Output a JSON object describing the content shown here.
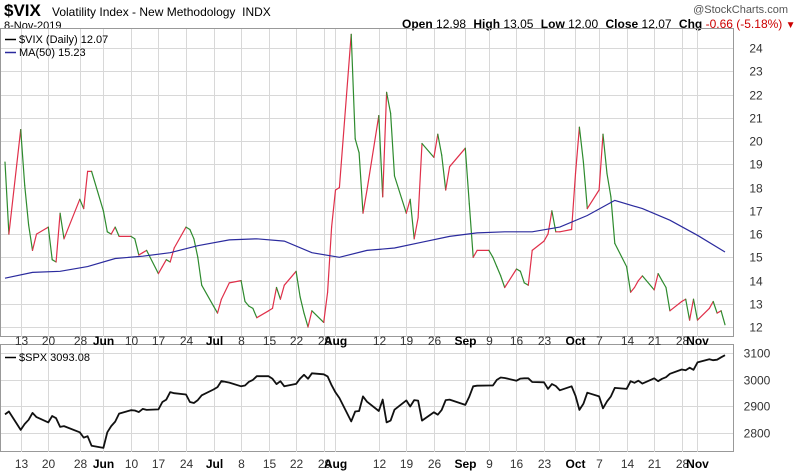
{
  "header": {
    "symbol": "$VIX",
    "name": "Volatility Index - New Methodology",
    "exchange": "INDX",
    "date": "8-Nov-2019",
    "watermark": "@StockCharts.com",
    "open_label": "Open",
    "open": "12.98",
    "high_label": "High",
    "high": "13.05",
    "low_label": "Low",
    "low": "12.00",
    "close_label": "Close",
    "close": "12.07",
    "chg_label": "Chg",
    "chg": "-0.66 (-5.18%)"
  },
  "colors": {
    "up": "#e0304a",
    "down": "#2e8b2e",
    "ma": "#2b2b9e",
    "spx": "#111111",
    "grid": "#d8d8d8",
    "down_arrow": "#cc0000"
  },
  "chart_data": [
    {
      "type": "line",
      "title": "$VIX Volatility Index - New Methodology INDX",
      "ylim": [
        11.7,
        24.7
      ],
      "yticks": [
        12,
        13,
        14,
        15,
        16,
        17,
        18,
        19,
        20,
        21,
        22,
        23,
        24
      ],
      "grid": true,
      "legend_position": "top-left",
      "coloring": "segment colored red when rising, green when falling",
      "x_labels": [
        "13",
        "20",
        "28",
        "Jun",
        "10",
        "17",
        "24",
        "Jul",
        "8",
        "15",
        "22",
        "29",
        "Aug",
        "12",
        "19",
        "26",
        "Sep",
        "9",
        "16",
        "23",
        "Oct",
        "7",
        "14",
        "21",
        "28",
        "Nov"
      ],
      "x_label_dates": [
        "2019-05-13",
        "2019-05-20",
        "2019-05-28",
        "2019-06-03",
        "2019-06-10",
        "2019-06-17",
        "2019-06-24",
        "2019-07-01",
        "2019-07-08",
        "2019-07-15",
        "2019-07-22",
        "2019-07-29",
        "2019-08-01",
        "2019-08-12",
        "2019-08-19",
        "2019-08-26",
        "2019-09-03",
        "2019-09-09",
        "2019-09-16",
        "2019-09-23",
        "2019-10-01",
        "2019-10-07",
        "2019-10-14",
        "2019-10-21",
        "2019-10-28",
        "2019-11-01"
      ],
      "series": [
        {
          "name": "$VIX (Daily) 12.07",
          "x": [
            "2019-05-09",
            "2019-05-10",
            "2019-05-13",
            "2019-05-14",
            "2019-05-15",
            "2019-05-16",
            "2019-05-17",
            "2019-05-20",
            "2019-05-21",
            "2019-05-22",
            "2019-05-23",
            "2019-05-24",
            "2019-05-28",
            "2019-05-29",
            "2019-05-30",
            "2019-05-31",
            "2019-06-03",
            "2019-06-04",
            "2019-06-05",
            "2019-06-06",
            "2019-06-07",
            "2019-06-10",
            "2019-06-11",
            "2019-06-12",
            "2019-06-13",
            "2019-06-14",
            "2019-06-17",
            "2019-06-18",
            "2019-06-19",
            "2019-06-20",
            "2019-06-21",
            "2019-06-24",
            "2019-06-25",
            "2019-06-26",
            "2019-06-27",
            "2019-06-28",
            "2019-07-01",
            "2019-07-02",
            "2019-07-03",
            "2019-07-05",
            "2019-07-08",
            "2019-07-09",
            "2019-07-10",
            "2019-07-11",
            "2019-07-12",
            "2019-07-15",
            "2019-07-16",
            "2019-07-17",
            "2019-07-18",
            "2019-07-19",
            "2019-07-22",
            "2019-07-23",
            "2019-07-24",
            "2019-07-25",
            "2019-07-26",
            "2019-07-29",
            "2019-07-30",
            "2019-07-31",
            "2019-08-01",
            "2019-08-02",
            "2019-08-05",
            "2019-08-06",
            "2019-08-07",
            "2019-08-08",
            "2019-08-09",
            "2019-08-12",
            "2019-08-13",
            "2019-08-14",
            "2019-08-15",
            "2019-08-16",
            "2019-08-19",
            "2019-08-20",
            "2019-08-21",
            "2019-08-22",
            "2019-08-23",
            "2019-08-26",
            "2019-08-27",
            "2019-08-28",
            "2019-08-29",
            "2019-08-30",
            "2019-09-03",
            "2019-09-04",
            "2019-09-05",
            "2019-09-06",
            "2019-09-09",
            "2019-09-10",
            "2019-09-11",
            "2019-09-12",
            "2019-09-13",
            "2019-09-16",
            "2019-09-17",
            "2019-09-18",
            "2019-09-19",
            "2019-09-20",
            "2019-09-23",
            "2019-09-24",
            "2019-09-25",
            "2019-09-26",
            "2019-09-27",
            "2019-09-30",
            "2019-10-01",
            "2019-10-02",
            "2019-10-03",
            "2019-10-04",
            "2019-10-07",
            "2019-10-08",
            "2019-10-09",
            "2019-10-10",
            "2019-10-11",
            "2019-10-14",
            "2019-10-15",
            "2019-10-16",
            "2019-10-17",
            "2019-10-18",
            "2019-10-21",
            "2019-10-22",
            "2019-10-23",
            "2019-10-24",
            "2019-10-25",
            "2019-10-28",
            "2019-10-29",
            "2019-10-30",
            "2019-10-31",
            "2019-11-01",
            "2019-11-04",
            "2019-11-05",
            "2019-11-06",
            "2019-11-07",
            "2019-11-08"
          ],
          "values": [
            19.1,
            16.0,
            20.5,
            18.1,
            16.4,
            15.3,
            16.0,
            16.3,
            14.9,
            14.8,
            16.9,
            15.8,
            17.5,
            17.1,
            18.7,
            18.7,
            17.0,
            16.1,
            16.0,
            16.3,
            15.9,
            15.9,
            15.8,
            15.1,
            15.2,
            15.3,
            14.3,
            14.6,
            14.9,
            14.8,
            15.4,
            16.3,
            16.2,
            15.8,
            15.0,
            13.8,
            12.9,
            12.6,
            13.2,
            13.9,
            14.0,
            13.1,
            12.9,
            12.8,
            12.4,
            12.7,
            12.8,
            13.7,
            13.2,
            13.8,
            14.4,
            13.3,
            12.6,
            12.0,
            12.7,
            12.2,
            13.5,
            16.3,
            17.9,
            18.0,
            24.6,
            20.1,
            19.5,
            16.9,
            17.9,
            21.1,
            17.6,
            22.1,
            21.2,
            18.5,
            16.9,
            17.5,
            15.8,
            16.7,
            19.9,
            19.3,
            20.3,
            19.4,
            17.9,
            18.9,
            19.7,
            17.3,
            15.0,
            15.3,
            15.3,
            15.0,
            14.6,
            14.2,
            13.7,
            14.5,
            14.4,
            13.9,
            13.8,
            15.3,
            15.7,
            16.0,
            17.0,
            16.1,
            16.1,
            16.2,
            18.6,
            20.6,
            19.1,
            17.1,
            17.9,
            20.3,
            18.6,
            17.6,
            15.6,
            14.6,
            13.5,
            13.7,
            14.0,
            14.2,
            13.6,
            14.3,
            14.0,
            13.7,
            12.7,
            13.1,
            13.2,
            12.3,
            13.2,
            12.3,
            12.8,
            13.1,
            12.6,
            12.7,
            12.1
          ]
        },
        {
          "name": "MA(50) 15.23",
          "x": [
            "2019-05-09",
            "2019-05-16",
            "2019-05-23",
            "2019-05-30",
            "2019-06-06",
            "2019-06-13",
            "2019-06-20",
            "2019-06-27",
            "2019-07-05",
            "2019-07-12",
            "2019-07-19",
            "2019-07-26",
            "2019-08-02",
            "2019-08-09",
            "2019-08-16",
            "2019-08-23",
            "2019-08-30",
            "2019-09-06",
            "2019-09-13",
            "2019-09-20",
            "2019-09-27",
            "2019-10-04",
            "2019-10-11",
            "2019-10-18",
            "2019-10-25",
            "2019-11-01",
            "2019-11-08"
          ],
          "values": [
            14.1,
            14.35,
            14.4,
            14.6,
            14.95,
            15.05,
            15.2,
            15.5,
            15.75,
            15.8,
            15.7,
            15.2,
            15.0,
            15.3,
            15.4,
            15.65,
            15.9,
            16.05,
            16.1,
            16.1,
            16.3,
            16.8,
            17.45,
            17.1,
            16.6,
            15.95,
            15.23
          ]
        }
      ]
    },
    {
      "type": "line",
      "title": "$SPX 3093.08",
      "ylim": [
        2740,
        3120
      ],
      "yticks": [
        2800,
        2900,
        3000,
        3100
      ],
      "grid": true,
      "legend_position": "top-left",
      "series": [
        {
          "name": "$SPX 3093.08",
          "x": [
            "2019-05-09",
            "2019-05-10",
            "2019-05-13",
            "2019-05-14",
            "2019-05-15",
            "2019-05-16",
            "2019-05-17",
            "2019-05-20",
            "2019-05-21",
            "2019-05-22",
            "2019-05-23",
            "2019-05-24",
            "2019-05-28",
            "2019-05-29",
            "2019-05-30",
            "2019-05-31",
            "2019-06-03",
            "2019-06-04",
            "2019-06-05",
            "2019-06-06",
            "2019-06-07",
            "2019-06-10",
            "2019-06-11",
            "2019-06-12",
            "2019-06-13",
            "2019-06-14",
            "2019-06-17",
            "2019-06-18",
            "2019-06-19",
            "2019-06-20",
            "2019-06-21",
            "2019-06-24",
            "2019-06-25",
            "2019-06-26",
            "2019-06-27",
            "2019-06-28",
            "2019-07-01",
            "2019-07-02",
            "2019-07-03",
            "2019-07-05",
            "2019-07-08",
            "2019-07-09",
            "2019-07-10",
            "2019-07-11",
            "2019-07-12",
            "2019-07-15",
            "2019-07-16",
            "2019-07-17",
            "2019-07-18",
            "2019-07-19",
            "2019-07-22",
            "2019-07-23",
            "2019-07-24",
            "2019-07-25",
            "2019-07-26",
            "2019-07-29",
            "2019-07-30",
            "2019-07-31",
            "2019-08-01",
            "2019-08-02",
            "2019-08-05",
            "2019-08-06",
            "2019-08-07",
            "2019-08-08",
            "2019-08-09",
            "2019-08-12",
            "2019-08-13",
            "2019-08-14",
            "2019-08-15",
            "2019-08-16",
            "2019-08-19",
            "2019-08-20",
            "2019-08-21",
            "2019-08-22",
            "2019-08-23",
            "2019-08-26",
            "2019-08-27",
            "2019-08-28",
            "2019-08-29",
            "2019-08-30",
            "2019-09-03",
            "2019-09-04",
            "2019-09-05",
            "2019-09-06",
            "2019-09-09",
            "2019-09-10",
            "2019-09-11",
            "2019-09-12",
            "2019-09-13",
            "2019-09-16",
            "2019-09-17",
            "2019-09-18",
            "2019-09-19",
            "2019-09-20",
            "2019-09-23",
            "2019-09-24",
            "2019-09-25",
            "2019-09-26",
            "2019-09-27",
            "2019-09-30",
            "2019-10-01",
            "2019-10-02",
            "2019-10-03",
            "2019-10-04",
            "2019-10-07",
            "2019-10-08",
            "2019-10-09",
            "2019-10-10",
            "2019-10-11",
            "2019-10-14",
            "2019-10-15",
            "2019-10-16",
            "2019-10-17",
            "2019-10-18",
            "2019-10-21",
            "2019-10-22",
            "2019-10-23",
            "2019-10-24",
            "2019-10-25",
            "2019-10-28",
            "2019-10-29",
            "2019-10-30",
            "2019-10-31",
            "2019-11-01",
            "2019-11-04",
            "2019-11-05",
            "2019-11-06",
            "2019-11-07",
            "2019-11-08"
          ],
          "values": [
            2870,
            2881,
            2812,
            2834,
            2850,
            2876,
            2860,
            2840,
            2864,
            2856,
            2823,
            2826,
            2803,
            2783,
            2788,
            2752,
            2744,
            2803,
            2826,
            2843,
            2873,
            2886,
            2885,
            2879,
            2891,
            2887,
            2889,
            2917,
            2926,
            2954,
            2950,
            2945,
            2917,
            2913,
            2924,
            2942,
            2964,
            2973,
            2996,
            2990,
            2976,
            2979,
            2993,
            3000,
            3014,
            3014,
            3004,
            2984,
            2995,
            2976,
            2985,
            3005,
            3019,
            3004,
            3025,
            3021,
            3013,
            2980,
            2953,
            2932,
            2844,
            2881,
            2883,
            2938,
            2918,
            2883,
            2926,
            2840,
            2847,
            2888,
            2923,
            2900,
            2924,
            2922,
            2847,
            2878,
            2869,
            2887,
            2924,
            2926,
            2906,
            2937,
            2976,
            2978,
            2979,
            2979,
            3000,
            3009,
            3007,
            2997,
            3005,
            3006,
            3006,
            2992,
            2991,
            2966,
            2984,
            2977,
            2961,
            2976,
            2940,
            2887,
            2910,
            2952,
            2938,
            2893,
            2919,
            2938,
            2970,
            2966,
            2995,
            2989,
            2997,
            2986,
            3006,
            2995,
            3004,
            3010,
            3023,
            3039,
            3036,
            3046,
            3038,
            3066,
            3078,
            3074,
            3076,
            3085,
            3093
          ]
        }
      ]
    }
  ]
}
